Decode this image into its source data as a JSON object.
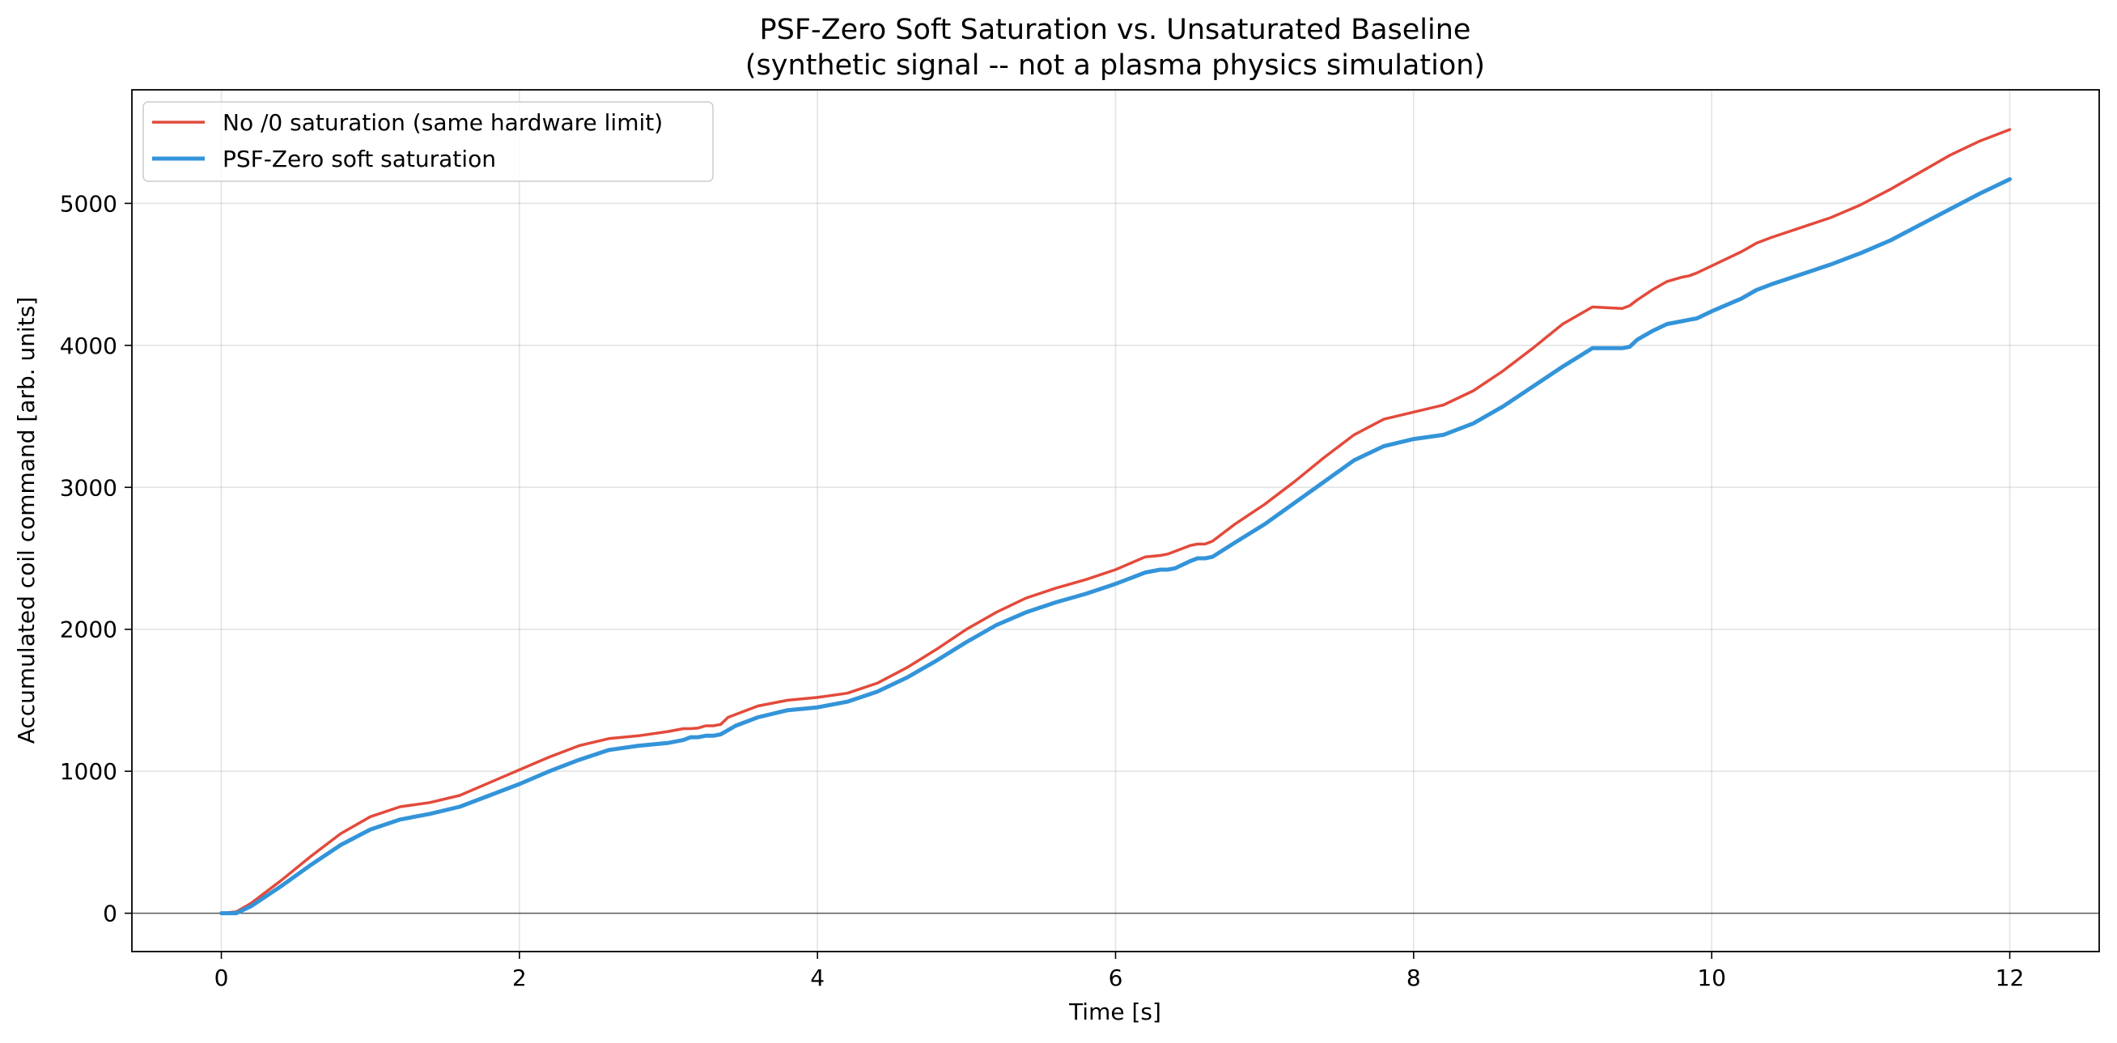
{
  "chart_data": {
    "type": "line",
    "title": "PSF-Zero Soft Saturation vs. Unsaturated Baseline",
    "subtitle": "(synthetic signal -- not a plasma physics simulation)",
    "xlabel": "Time [s]",
    "ylabel": "Accumulated coil command [arb. units]",
    "xlim": [
      -0.6,
      12.6
    ],
    "ylim": [
      -270,
      5800
    ],
    "xticks": [
      0,
      2,
      4,
      6,
      8,
      10,
      12
    ],
    "yticks": [
      0,
      1000,
      2000,
      3000,
      4000,
      5000
    ],
    "grid": true,
    "legend_position": "upper-left",
    "zero_line": true,
    "series": [
      {
        "name": "No /0 saturation (same hardware limit)",
        "color": "#e34a3b",
        "x": [
          0,
          0.1,
          0.2,
          0.4,
          0.6,
          0.8,
          1.0,
          1.2,
          1.4,
          1.6,
          1.8,
          2.0,
          2.2,
          2.4,
          2.6,
          2.8,
          3.0,
          3.1,
          3.15,
          3.2,
          3.25,
          3.3,
          3.35,
          3.4,
          3.45,
          3.6,
          3.8,
          4.0,
          4.2,
          4.4,
          4.6,
          4.8,
          5.0,
          5.2,
          5.4,
          5.6,
          5.8,
          6.0,
          6.2,
          6.3,
          6.35,
          6.4,
          6.5,
          6.55,
          6.6,
          6.65,
          6.8,
          7.0,
          7.2,
          7.4,
          7.6,
          7.8,
          8.0,
          8.2,
          8.4,
          8.6,
          8.8,
          9.0,
          9.2,
          9.4,
          9.45,
          9.5,
          9.6,
          9.7,
          9.8,
          9.85,
          9.9,
          10.0,
          10.2,
          10.25,
          10.3,
          10.4,
          10.6,
          10.8,
          11.0,
          11.2,
          11.4,
          11.6,
          11.8,
          12.0
        ],
        "y": [
          0,
          10,
          70,
          230,
          400,
          560,
          680,
          750,
          780,
          830,
          920,
          1010,
          1100,
          1180,
          1230,
          1250,
          1280,
          1300,
          1300,
          1305,
          1320,
          1320,
          1330,
          1380,
          1400,
          1460,
          1500,
          1520,
          1550,
          1620,
          1730,
          1860,
          2000,
          2120,
          2220,
          2290,
          2350,
          2420,
          2510,
          2520,
          2530,
          2550,
          2590,
          2600,
          2600,
          2620,
          2740,
          2880,
          3040,
          3210,
          3370,
          3480,
          3530,
          3580,
          3680,
          3820,
          3980,
          4150,
          4270,
          4260,
          4280,
          4320,
          4390,
          4450,
          4480,
          4490,
          4510,
          4560,
          4660,
          4690,
          4720,
          4760,
          4830,
          4900,
          4990,
          5100,
          5220,
          5340,
          5440,
          5520
        ]
      },
      {
        "name": "PSF-Zero soft saturation",
        "color": "#3394d9",
        "x": [
          0,
          0.1,
          0.2,
          0.4,
          0.6,
          0.8,
          1.0,
          1.2,
          1.4,
          1.6,
          1.8,
          2.0,
          2.2,
          2.4,
          2.6,
          2.8,
          3.0,
          3.1,
          3.15,
          3.2,
          3.25,
          3.3,
          3.35,
          3.4,
          3.45,
          3.6,
          3.8,
          4.0,
          4.2,
          4.4,
          4.6,
          4.8,
          5.0,
          5.2,
          5.4,
          5.6,
          5.8,
          6.0,
          6.2,
          6.3,
          6.35,
          6.4,
          6.5,
          6.55,
          6.6,
          6.65,
          6.8,
          7.0,
          7.2,
          7.4,
          7.6,
          7.8,
          8.0,
          8.2,
          8.4,
          8.6,
          8.8,
          9.0,
          9.2,
          9.4,
          9.45,
          9.5,
          9.6,
          9.7,
          9.8,
          9.85,
          9.9,
          10.0,
          10.2,
          10.25,
          10.3,
          10.4,
          10.6,
          10.8,
          11.0,
          11.2,
          11.4,
          11.6,
          11.8,
          12.0
        ],
        "y": [
          0,
          0,
          50,
          190,
          340,
          480,
          590,
          660,
          700,
          750,
          830,
          910,
          1000,
          1080,
          1150,
          1180,
          1200,
          1220,
          1240,
          1240,
          1250,
          1250,
          1260,
          1290,
          1320,
          1380,
          1430,
          1450,
          1490,
          1560,
          1660,
          1780,
          1910,
          2030,
          2120,
          2190,
          2250,
          2320,
          2400,
          2420,
          2420,
          2430,
          2480,
          2500,
          2500,
          2510,
          2610,
          2740,
          2890,
          3040,
          3190,
          3290,
          3340,
          3370,
          3450,
          3570,
          3710,
          3850,
          3980,
          3980,
          3990,
          4040,
          4100,
          4150,
          4170,
          4180,
          4190,
          4240,
          4330,
          4360,
          4390,
          4430,
          4500,
          4570,
          4650,
          4740,
          4850,
          4960,
          5070,
          5170
        ]
      }
    ]
  }
}
